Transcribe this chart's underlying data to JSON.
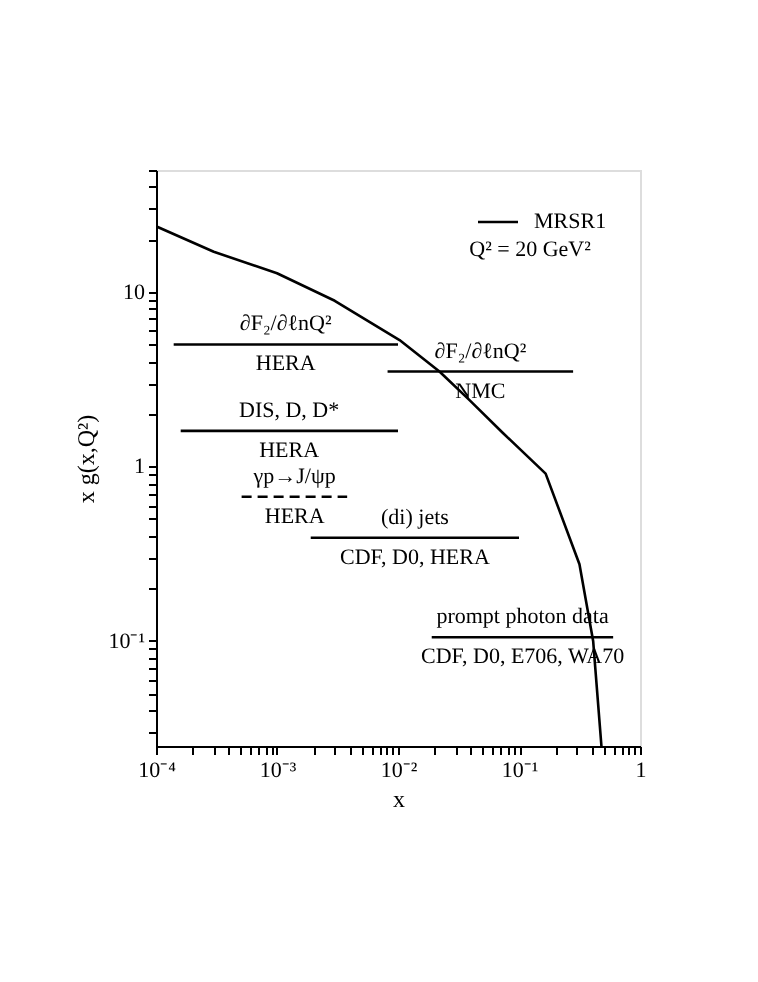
{
  "chart_data": {
    "type": "line",
    "xlabel": "x",
    "ylabel": "x g(x,Q²)",
    "log": "xy",
    "grid": false,
    "legend": "top right",
    "marker": "none",
    "xlim": [
      0.0001,
      1
    ],
    "ylim": [
      0.025,
      50
    ],
    "xticks": [
      {
        "value": 0.0001,
        "label": "10⁻⁴"
      },
      {
        "value": 0.0002,
        "label": null
      },
      {
        "value": 0.0003,
        "label": null
      },
      {
        "value": 0.0004,
        "label": null
      },
      {
        "value": 0.0005,
        "label": null
      },
      {
        "value": 0.0006,
        "label": null
      },
      {
        "value": 0.0007,
        "label": null
      },
      {
        "value": 0.0008,
        "label": null
      },
      {
        "value": 0.0009,
        "label": null
      },
      {
        "value": 0.001,
        "label": "10⁻³"
      },
      {
        "value": 0.002,
        "label": null
      },
      {
        "value": 0.003,
        "label": null
      },
      {
        "value": 0.004,
        "label": null
      },
      {
        "value": 0.005,
        "label": null
      },
      {
        "value": 0.006,
        "label": null
      },
      {
        "value": 0.007,
        "label": null
      },
      {
        "value": 0.008,
        "label": null
      },
      {
        "value": 0.009,
        "label": null
      },
      {
        "value": 0.01,
        "label": "10⁻²"
      },
      {
        "value": 0.02,
        "label": null
      },
      {
        "value": 0.03,
        "label": null
      },
      {
        "value": 0.04,
        "label": null
      },
      {
        "value": 0.05,
        "label": null
      },
      {
        "value": 0.06,
        "label": null
      },
      {
        "value": 0.07,
        "label": null
      },
      {
        "value": 0.08,
        "label": null
      },
      {
        "value": 0.09,
        "label": null
      },
      {
        "value": 0.1,
        "label": "10⁻¹"
      },
      {
        "value": 0.2,
        "label": null
      },
      {
        "value": 0.3,
        "label": null
      },
      {
        "value": 0.4,
        "label": null
      },
      {
        "value": 0.5,
        "label": null
      },
      {
        "value": 0.6,
        "label": null
      },
      {
        "value": 0.7,
        "label": null
      },
      {
        "value": 0.8,
        "label": null
      },
      {
        "value": 0.9,
        "label": null
      },
      1
    ],
    "yticks": [
      {
        "value": 0.03,
        "label": null
      },
      {
        "value": 0.04,
        "label": null
      },
      {
        "value": 0.05,
        "label": null
      },
      {
        "value": 0.06,
        "label": null
      },
      {
        "value": 0.07,
        "label": null
      },
      {
        "value": 0.08,
        "label": null
      },
      {
        "value": 0.09,
        "label": null
      },
      {
        "value": 0.1,
        "label": "10⁻¹"
      },
      {
        "value": 0.2,
        "label": null
      },
      {
        "value": 0.3,
        "label": null
      },
      {
        "value": 0.4,
        "label": null
      },
      {
        "value": 0.5,
        "label": null
      },
      {
        "value": 0.6,
        "label": null
      },
      {
        "value": 0.7,
        "label": null
      },
      {
        "value": 0.8,
        "label": null
      },
      {
        "value": 0.9,
        "label": null
      },
      1,
      {
        "value": 2,
        "label": null
      },
      {
        "value": 3,
        "label": null
      },
      {
        "value": 4,
        "label": null
      },
      {
        "value": 5,
        "label": null
      },
      {
        "value": 6,
        "label": null
      },
      {
        "value": 7,
        "label": null
      },
      {
        "value": 8,
        "label": null
      },
      {
        "value": 9,
        "label": null
      },
      10,
      {
        "value": 20,
        "label": null
      },
      {
        "value": 30,
        "label": null
      },
      {
        "value": 40,
        "label": null
      },
      {
        "value": 50,
        "label": null
      }
    ],
    "series": [
      {
        "name": "MRSR1",
        "color": "#000000",
        "line_style": "solid",
        "x": [
          0.0001,
          0.0003,
          0.001,
          0.003,
          0.0103,
          0.022,
          0.039,
          0.074,
          0.166,
          0.316,
          0.41,
          0.48
        ],
        "values": [
          23.8,
          17.0,
          12.8,
          8.9,
          5.3,
          3.5,
          2.4,
          1.55,
          0.91,
          0.275,
          0.1,
          0.025
        ]
      },
      {
        "color": "#000000",
        "line_style": "solid",
        "x": [
          0.00014,
          0.01
        ],
        "values": [
          5.0,
          5.0
        ]
      },
      {
        "color": "#000000",
        "line_style": "solid",
        "x": [
          0.0082,
          0.28
        ],
        "values": [
          3.5,
          3.5
        ]
      },
      {
        "color": "#000000",
        "line_style": "solid",
        "x": [
          0.00016,
          0.01
        ],
        "values": [
          1.6,
          1.6
        ]
      },
      {
        "color": "#000000",
        "line_style": "dashed",
        "x": [
          0.00051,
          0.0038
        ],
        "values": [
          0.67,
          0.67
        ]
      },
      {
        "color": "#000000",
        "line_style": "solid",
        "x": [
          0.0019,
          0.1
        ],
        "values": [
          0.39,
          0.39
        ]
      },
      {
        "color": "#000000",
        "line_style": "solid",
        "x": [
          0.019,
          0.6
        ],
        "values": [
          0.105,
          0.105
        ]
      }
    ],
    "annotations": [
      "Q² = 20 GeV²",
      {
        "text": "∂F₂/∂ℓnQ²",
        "x": 0.00118,
        "y": 5.0
      },
      {
        "text": "HERA",
        "x": 0.00118,
        "y": 5.0
      },
      {
        "text": "∂F₂/∂ℓnQ²",
        "x": 0.048,
        "y": 3.5
      },
      {
        "text": "NMC",
        "x": 0.048,
        "y": 3.5
      },
      {
        "text": "DIS, D, D*",
        "x": 0.00126,
        "y": 1.6
      },
      {
        "text": "HERA",
        "x": 0.00126,
        "y": 1.6
      },
      {
        "text": "γp→J/ψp",
        "x": 0.0014,
        "y": 0.67
      },
      {
        "text": "HERA",
        "x": 0.0014,
        "y": 0.67
      },
      {
        "text": "(di) jets",
        "x": 0.0138,
        "y": 0.39
      },
      {
        "text": "CDF, D0, HERA",
        "x": 0.0138,
        "y": 0.39
      },
      {
        "text": "prompt photon data",
        "x": 0.107,
        "y": 0.105
      },
      {
        "text": "CDF, D0, E706, WA70",
        "x": 0.107,
        "y": 0.105
      }
    ]
  }
}
